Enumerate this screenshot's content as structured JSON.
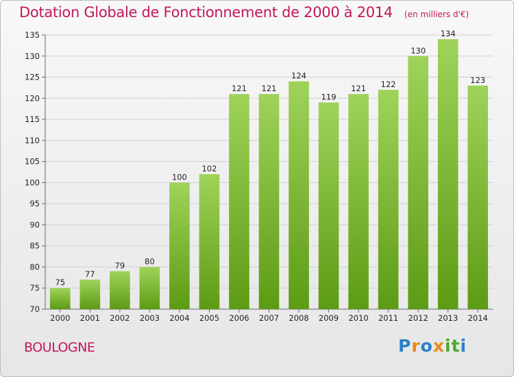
{
  "title": "Dotation Globale de Fonctionnement de 2000 à 2014",
  "subtitle": "(en milliers d'€)",
  "city": "BOULOGNE",
  "logo": {
    "letters": [
      "P",
      "r",
      "o",
      "x",
      "i",
      "t",
      "i"
    ],
    "colors": [
      "#2a7fc9",
      "#e8891a",
      "#2a7fc9",
      "#e8891a",
      "#4aa82e",
      "#4aa82e",
      "#2a7fc9"
    ]
  },
  "colors": {
    "bar_top": "#9fd35a",
    "bar_bottom": "#5c9b14",
    "title": "#c2185b"
  },
  "chart_data": {
    "type": "bar",
    "categories": [
      "2000",
      "2001",
      "2002",
      "2003",
      "2004",
      "2005",
      "2006",
      "2007",
      "2008",
      "2009",
      "2010",
      "2011",
      "2012",
      "2013",
      "2014"
    ],
    "values": [
      75,
      77,
      79,
      80,
      100,
      102,
      121,
      121,
      124,
      119,
      121,
      122,
      130,
      134,
      123
    ],
    "ylim": [
      70,
      135
    ],
    "yticks": [
      70,
      75,
      80,
      85,
      90,
      95,
      100,
      105,
      110,
      115,
      120,
      125,
      130,
      135
    ],
    "grid": true
  }
}
